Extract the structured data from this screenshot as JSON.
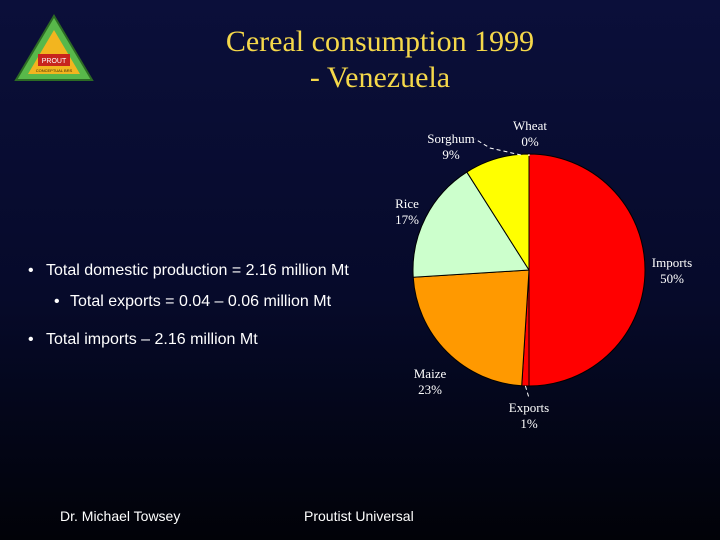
{
  "slide": {
    "title_line1": "Cereal consumption 1999",
    "title_line2": "- Venezuela"
  },
  "logo": {
    "text_top": "PROUT",
    "text_bottom": "CONCEPTUAL BRS",
    "colors": {
      "outer": "#58b84a",
      "inner": "#f2b51f",
      "panel": "#c7241d"
    }
  },
  "bullets": [
    {
      "marker": "•",
      "text": "Total domestic production = 2.16 million Mt"
    },
    {
      "marker": "•",
      "text": "Total exports = 0.04 – 0.06 million Mt"
    },
    {
      "marker": "•",
      "text": "Total imports – 2.16 million Mt"
    }
  ],
  "footer": {
    "left": "Dr. Michael Towsey",
    "right": "Proutist Universal"
  },
  "chart_data": {
    "type": "pie",
    "title": "Cereal consumption 1999 - Venezuela",
    "start": "12 o'clock",
    "direction": "clockwise",
    "slices": [
      {
        "name": "Imports",
        "value": 50,
        "label": "50%",
        "color": "#ff0000"
      },
      {
        "name": "Exports",
        "value": 1,
        "label": "1%",
        "color": "#ff0000"
      },
      {
        "name": "Maize",
        "value": 23,
        "label": "23%",
        "color": "#ff9900"
      },
      {
        "name": "Rice",
        "value": 17,
        "label": "17%",
        "color": "#ccffcc"
      },
      {
        "name": "Sorghum",
        "value": 9,
        "label": "9%",
        "color": "#ffff00"
      },
      {
        "name": "Wheat",
        "value": 0,
        "label": "0%",
        "color": "#ffff00"
      }
    ]
  }
}
